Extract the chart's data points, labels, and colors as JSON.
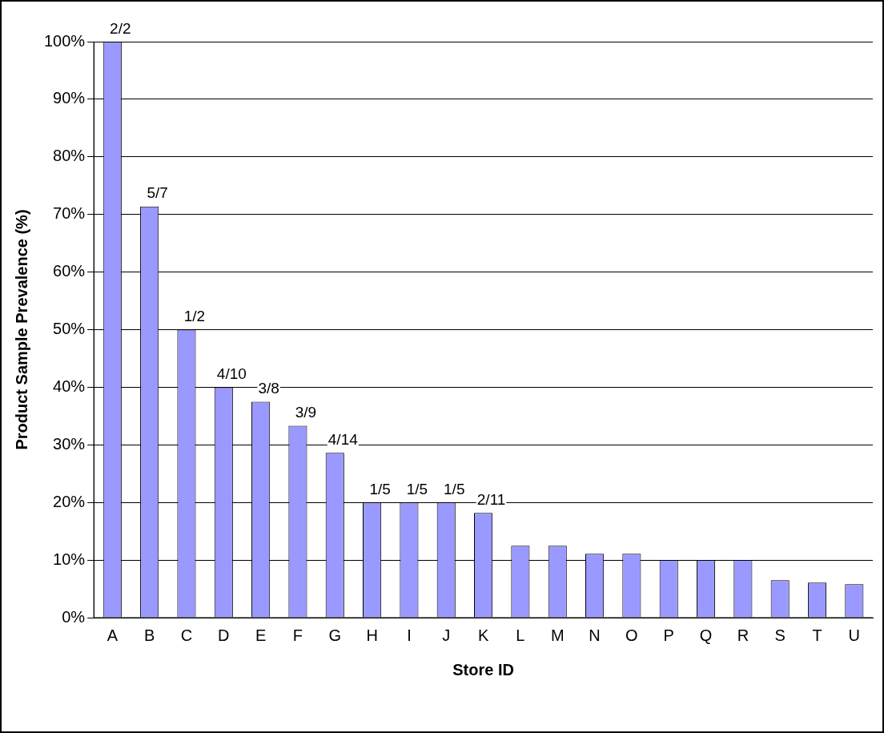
{
  "chart_data": {
    "type": "bar",
    "xlabel": "Store ID",
    "ylabel": "Product Sample Prevalence (%)",
    "categories": [
      "A",
      "B",
      "C",
      "D",
      "E",
      "F",
      "G",
      "H",
      "I",
      "J",
      "K",
      "L",
      "M",
      "N",
      "O",
      "P",
      "Q",
      "R",
      "S",
      "T",
      "U"
    ],
    "values": [
      100,
      71.4,
      50,
      40,
      37.5,
      33.3,
      28.6,
      20,
      20,
      20,
      18.2,
      12.5,
      12.5,
      11.1,
      11.1,
      10,
      10,
      10,
      6.5,
      6.1,
      5.8
    ],
    "annotations": [
      {
        "text": "2/2",
        "x": "A",
        "y": 100
      },
      {
        "text": "5/7",
        "x": "B",
        "y": 71.4
      },
      {
        "text": "1/2",
        "x": "C",
        "y": 50
      },
      {
        "text": "4/10",
        "x": "D",
        "y": 40
      },
      {
        "text": "3/8",
        "x": "E",
        "y": 37.5
      },
      {
        "text": "3/9",
        "x": "F",
        "y": 33.3
      },
      {
        "text": "4/14",
        "x": "G",
        "y": 28.6
      },
      {
        "text": "1/5",
        "x": "H",
        "y": 20
      },
      {
        "text": "1/5",
        "x": "I",
        "y": 20
      },
      {
        "text": "1/5",
        "x": "J",
        "y": 20
      },
      {
        "text": "2/11",
        "x": "K",
        "y": 18.2
      }
    ],
    "color": "#9999ff",
    "ylim": [
      0,
      100
    ],
    "yticks": [
      {
        "value": 0,
        "label": "0%"
      },
      {
        "value": 10,
        "label": "10%"
      },
      {
        "value": 20,
        "label": "20%"
      },
      {
        "value": 30,
        "label": "30%"
      },
      {
        "value": 40,
        "label": "40%"
      },
      {
        "value": 50,
        "label": "50%"
      },
      {
        "value": 60,
        "label": "60%"
      },
      {
        "value": 70,
        "label": "70%"
      },
      {
        "value": 80,
        "label": "80%"
      },
      {
        "value": 90,
        "label": "90%"
      },
      {
        "value": 100,
        "label": "100%"
      }
    ],
    "grid": "y",
    "legend": false
  }
}
